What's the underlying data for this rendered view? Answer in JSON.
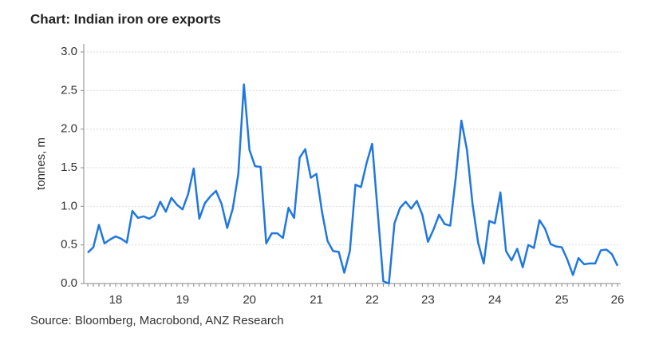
{
  "chart_data": {
    "type": "line",
    "title": "Chart: Indian iron ore exports",
    "y_label": "tonnes, m",
    "source": "Source:  Bloomberg, Macrobond, ANZ Research",
    "categories": [
      null,
      null,
      null,
      null,
      null,
      "18",
      null,
      null,
      null,
      null,
      null,
      null,
      null,
      null,
      null,
      null,
      null,
      "19",
      null,
      null,
      null,
      null,
      null,
      null,
      null,
      null,
      null,
      null,
      null,
      "20",
      null,
      null,
      null,
      null,
      null,
      null,
      null,
      null,
      null,
      null,
      null,
      "21",
      null,
      null,
      null,
      null,
      null,
      null,
      null,
      null,
      null,
      "22",
      null,
      null,
      null,
      null,
      null,
      null,
      null,
      null,
      null,
      "23",
      null,
      null,
      null,
      null,
      null,
      null,
      null,
      null,
      null,
      null,
      null,
      "24",
      null,
      null,
      null,
      null,
      null,
      null,
      null,
      null,
      null,
      null,
      null,
      "25",
      null,
      null,
      null,
      null,
      null,
      null,
      null,
      null,
      null,
      "26"
    ],
    "series": [
      {
        "color": "#1f77e0",
        "values": [
          0.4,
          0.47,
          0.76,
          0.52,
          0.57,
          0.61,
          0.58,
          0.53,
          0.94,
          0.85,
          0.87,
          0.84,
          0.88,
          1.06,
          0.93,
          1.11,
          1.02,
          0.96,
          1.16,
          1.49,
          0.84,
          1.04,
          1.13,
          1.2,
          1.03,
          0.72,
          0.97,
          1.42,
          2.58,
          1.73,
          1.52,
          1.51,
          0.52,
          0.65,
          0.65,
          0.59,
          0.98,
          0.85,
          1.63,
          1.74,
          1.37,
          1.42,
          0.93,
          0.55,
          0.42,
          0.41,
          0.14,
          0.42,
          1.28,
          1.25,
          1.56,
          1.81,
          0.92,
          0.03,
          0.0,
          0.78,
          0.98,
          1.06,
          0.97,
          1.07,
          0.89,
          0.54,
          0.7,
          0.89,
          0.77,
          0.75,
          1.38,
          2.11,
          1.73,
          1.03,
          0.53,
          0.26,
          0.81,
          0.78,
          1.18,
          0.42,
          0.3,
          0.45,
          0.21,
          0.5,
          0.46,
          0.82,
          0.71,
          0.51,
          0.48,
          0.47,
          0.31,
          0.11,
          0.33,
          0.25,
          0.26,
          0.26,
          0.43,
          0.44,
          0.38,
          0.23
        ]
      }
    ],
    "ylim": [
      0,
      3.0
    ],
    "yticks": [
      {
        "value": 0,
        "label": "0.0"
      },
      0.5,
      {
        "value": 1,
        "label": "1.0"
      },
      1.5,
      {
        "value": 2,
        "label": "2.0"
      },
      2.5,
      {
        "value": 3,
        "label": "3.0"
      }
    ],
    "grid": true
  }
}
